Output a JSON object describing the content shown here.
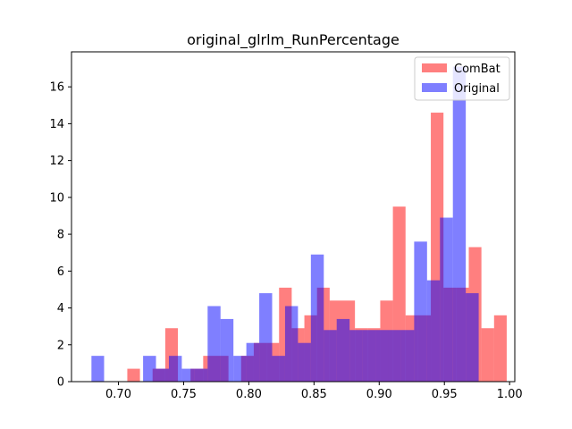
{
  "chart_data": {
    "type": "bar",
    "title": "original_glrlm_RunPercentage",
    "xlabel": "",
    "ylabel": "",
    "xlim": [
      0.664,
      1.004
    ],
    "ylim": [
      0,
      17.9
    ],
    "grid": false,
    "legend_position": "top-right",
    "x_ticks": [
      "0.70",
      "0.75",
      "0.80",
      "0.85",
      "0.90",
      "0.95",
      "1.00"
    ],
    "x_tick_values": [
      0.7,
      0.75,
      0.8,
      0.85,
      0.9,
      0.95,
      1.0
    ],
    "y_ticks": [
      "0",
      "2",
      "4",
      "6",
      "8",
      "10",
      "12",
      "14",
      "16"
    ],
    "y_tick_values": [
      0,
      2,
      4,
      6,
      8,
      10,
      12,
      14,
      16
    ],
    "series": [
      {
        "name": "ComBat",
        "color": "#ff0000",
        "opacity": 0.5,
        "bins": [
          {
            "x0": 0.7068,
            "x1": 0.7165,
            "y": 0.7
          },
          {
            "x0": 0.7262,
            "x1": 0.7359,
            "y": 0.7
          },
          {
            "x0": 0.7359,
            "x1": 0.7456,
            "y": 2.9
          },
          {
            "x0": 0.7553,
            "x1": 0.765,
            "y": 0.7
          },
          {
            "x0": 0.765,
            "x1": 0.7747,
            "y": 1.4
          },
          {
            "x0": 0.7747,
            "x1": 0.7844,
            "y": 1.4
          },
          {
            "x0": 0.7941,
            "x1": 0.8038,
            "y": 1.4
          },
          {
            "x0": 0.8038,
            "x1": 0.8135,
            "y": 2.1
          },
          {
            "x0": 0.8135,
            "x1": 0.8232,
            "y": 2.1
          },
          {
            "x0": 0.8232,
            "x1": 0.8329,
            "y": 5.1
          },
          {
            "x0": 0.8329,
            "x1": 0.8426,
            "y": 2.9
          },
          {
            "x0": 0.8426,
            "x1": 0.8523,
            "y": 3.6
          },
          {
            "x0": 0.8523,
            "x1": 0.862,
            "y": 5.1
          },
          {
            "x0": 0.862,
            "x1": 0.8717,
            "y": 4.4
          },
          {
            "x0": 0.8717,
            "x1": 0.8814,
            "y": 4.4
          },
          {
            "x0": 0.8814,
            "x1": 0.8911,
            "y": 2.9
          },
          {
            "x0": 0.8911,
            "x1": 0.9008,
            "y": 2.9
          },
          {
            "x0": 0.9008,
            "x1": 0.9105,
            "y": 4.4
          },
          {
            "x0": 0.9105,
            "x1": 0.9202,
            "y": 9.5
          },
          {
            "x0": 0.9202,
            "x1": 0.9299,
            "y": 3.6
          },
          {
            "x0": 0.9299,
            "x1": 0.9396,
            "y": 3.6
          },
          {
            "x0": 0.9396,
            "x1": 0.9493,
            "y": 14.6
          },
          {
            "x0": 0.9493,
            "x1": 0.959,
            "y": 5.1
          },
          {
            "x0": 0.959,
            "x1": 0.9687,
            "y": 5.1
          },
          {
            "x0": 0.9687,
            "x1": 0.9784,
            "y": 7.3
          },
          {
            "x0": 0.9784,
            "x1": 0.9881,
            "y": 2.9
          },
          {
            "x0": 0.9881,
            "x1": 0.9978,
            "y": 3.6
          }
        ]
      },
      {
        "name": "Original",
        "color": "#0000ff",
        "opacity": 0.5,
        "bins": [
          {
            "x0": 0.6793,
            "x1": 0.689,
            "y": 1.4
          },
          {
            "x0": 0.7189,
            "x1": 0.7288,
            "y": 1.4
          },
          {
            "x0": 0.7288,
            "x1": 0.7387,
            "y": 0.7
          },
          {
            "x0": 0.7387,
            "x1": 0.7486,
            "y": 1.4
          },
          {
            "x0": 0.7486,
            "x1": 0.7585,
            "y": 0.7
          },
          {
            "x0": 0.7585,
            "x1": 0.7684,
            "y": 0.7
          },
          {
            "x0": 0.7684,
            "x1": 0.7783,
            "y": 4.1
          },
          {
            "x0": 0.7783,
            "x1": 0.7882,
            "y": 3.4
          },
          {
            "x0": 0.7882,
            "x1": 0.7981,
            "y": 1.4
          },
          {
            "x0": 0.7981,
            "x1": 0.808,
            "y": 2.1
          },
          {
            "x0": 0.808,
            "x1": 0.8179,
            "y": 4.8
          },
          {
            "x0": 0.8179,
            "x1": 0.8278,
            "y": 1.4
          },
          {
            "x0": 0.8278,
            "x1": 0.8377,
            "y": 4.1
          },
          {
            "x0": 0.8377,
            "x1": 0.8476,
            "y": 2.1
          },
          {
            "x0": 0.8476,
            "x1": 0.8575,
            "y": 6.9
          },
          {
            "x0": 0.8575,
            "x1": 0.8674,
            "y": 2.8
          },
          {
            "x0": 0.8674,
            "x1": 0.8773,
            "y": 3.4
          },
          {
            "x0": 0.8773,
            "x1": 0.8872,
            "y": 2.8
          },
          {
            "x0": 0.8872,
            "x1": 0.8971,
            "y": 2.8
          },
          {
            "x0": 0.8971,
            "x1": 0.907,
            "y": 2.8
          },
          {
            "x0": 0.907,
            "x1": 0.9169,
            "y": 2.8
          },
          {
            "x0": 0.9169,
            "x1": 0.9268,
            "y": 2.8
          },
          {
            "x0": 0.9268,
            "x1": 0.9367,
            "y": 7.6
          },
          {
            "x0": 0.9367,
            "x1": 0.9466,
            "y": 5.5
          },
          {
            "x0": 0.9466,
            "x1": 0.9565,
            "y": 8.9
          },
          {
            "x0": 0.9565,
            "x1": 0.9664,
            "y": 17.1
          },
          {
            "x0": 0.9664,
            "x1": 0.9763,
            "y": 4.8
          }
        ]
      }
    ]
  }
}
